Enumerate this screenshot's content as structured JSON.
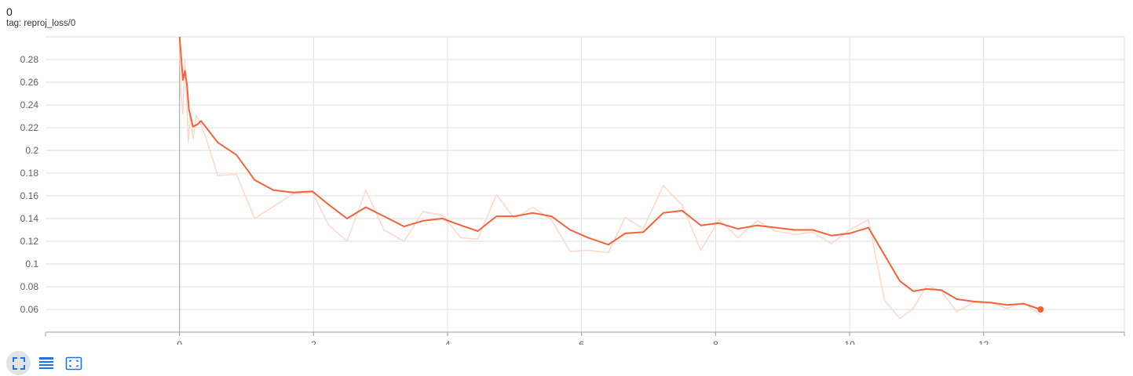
{
  "card": {
    "title": "0",
    "tag": "tag: reproj_loss/0"
  },
  "toolbar": {
    "icons": [
      "fullscreen-icon",
      "data-table-icon",
      "fit-domain-icon"
    ]
  },
  "colors": {
    "smoothed": "#f4623a",
    "raw": "#fdd9cc",
    "grid": "#dedede",
    "axis": "#9e9e9e",
    "icon": "#1a73e8"
  },
  "chart_data": {
    "type": "line",
    "xlim": [
      -2,
      14.1
    ],
    "ylim": [
      0.04,
      0.3
    ],
    "x_ticks": [
      0,
      2,
      4,
      6,
      8,
      10,
      12
    ],
    "y_ticks": [
      0.06,
      0.08,
      0.1,
      0.12,
      0.14,
      0.16,
      0.18,
      0.2,
      0.22,
      0.24,
      0.26,
      0.28
    ],
    "grid": true,
    "series": [
      {
        "role": "raw",
        "x": [
          0,
          0.02,
          0.05,
          0.08,
          0.1,
          0.13,
          0.16,
          0.2,
          0.25,
          0.3,
          0.4,
          0.57,
          0.85,
          1.12,
          1.7,
          1.98,
          2.23,
          2.5,
          2.78,
          3.05,
          3.35,
          3.63,
          3.92,
          4.2,
          4.45,
          4.73,
          5.0,
          5.27,
          5.55,
          5.83,
          6.1,
          6.4,
          6.65,
          6.92,
          7.22,
          7.5,
          7.78,
          8.05,
          8.33,
          8.62,
          8.9,
          9.18,
          9.45,
          9.73,
          10.0,
          10.28,
          10.52,
          10.75,
          10.95,
          11.15,
          11.37,
          11.6,
          11.85,
          12.1,
          12.35,
          12.6,
          12.85
        ],
        "y": [
          0.3,
          0.25,
          0.232,
          0.28,
          0.255,
          0.207,
          0.232,
          0.21,
          0.231,
          0.225,
          0.21,
          0.178,
          0.179,
          0.14,
          0.162,
          0.163,
          0.134,
          0.12,
          0.165,
          0.13,
          0.12,
          0.146,
          0.143,
          0.123,
          0.122,
          0.161,
          0.14,
          0.15,
          0.139,
          0.111,
          0.112,
          0.11,
          0.141,
          0.131,
          0.169,
          0.152,
          0.112,
          0.139,
          0.123,
          0.138,
          0.129,
          0.126,
          0.128,
          0.118,
          0.13,
          0.139,
          0.068,
          0.052,
          0.061,
          0.081,
          0.076,
          0.058,
          0.066,
          0.066,
          0.061,
          0.066,
          0.055
        ]
      },
      {
        "role": "smoothed",
        "x": [
          0,
          0.05,
          0.08,
          0.11,
          0.14,
          0.2,
          0.27,
          0.32,
          0.57,
          0.85,
          1.12,
          1.4,
          1.7,
          1.98,
          2.23,
          2.5,
          2.78,
          3.05,
          3.35,
          3.63,
          3.92,
          4.2,
          4.45,
          4.73,
          5.0,
          5.27,
          5.55,
          5.83,
          6.1,
          6.4,
          6.65,
          6.92,
          7.22,
          7.5,
          7.78,
          8.05,
          8.33,
          8.62,
          8.9,
          9.18,
          9.45,
          9.73,
          10.0,
          10.28,
          10.75,
          10.95,
          11.15,
          11.37,
          11.6,
          11.85,
          12.1,
          12.35,
          12.6,
          12.85
        ],
        "y": [
          0.3,
          0.262,
          0.27,
          0.258,
          0.236,
          0.221,
          0.223,
          0.226,
          0.207,
          0.196,
          0.174,
          0.165,
          0.163,
          0.164,
          0.152,
          0.14,
          0.15,
          0.142,
          0.133,
          0.138,
          0.14,
          0.134,
          0.129,
          0.142,
          0.142,
          0.145,
          0.142,
          0.13,
          0.123,
          0.117,
          0.127,
          0.128,
          0.145,
          0.147,
          0.134,
          0.136,
          0.131,
          0.134,
          0.132,
          0.13,
          0.13,
          0.125,
          0.127,
          0.132,
          0.085,
          0.076,
          0.078,
          0.077,
          0.069,
          0.067,
          0.066,
          0.064,
          0.065,
          0.06
        ]
      }
    ]
  }
}
